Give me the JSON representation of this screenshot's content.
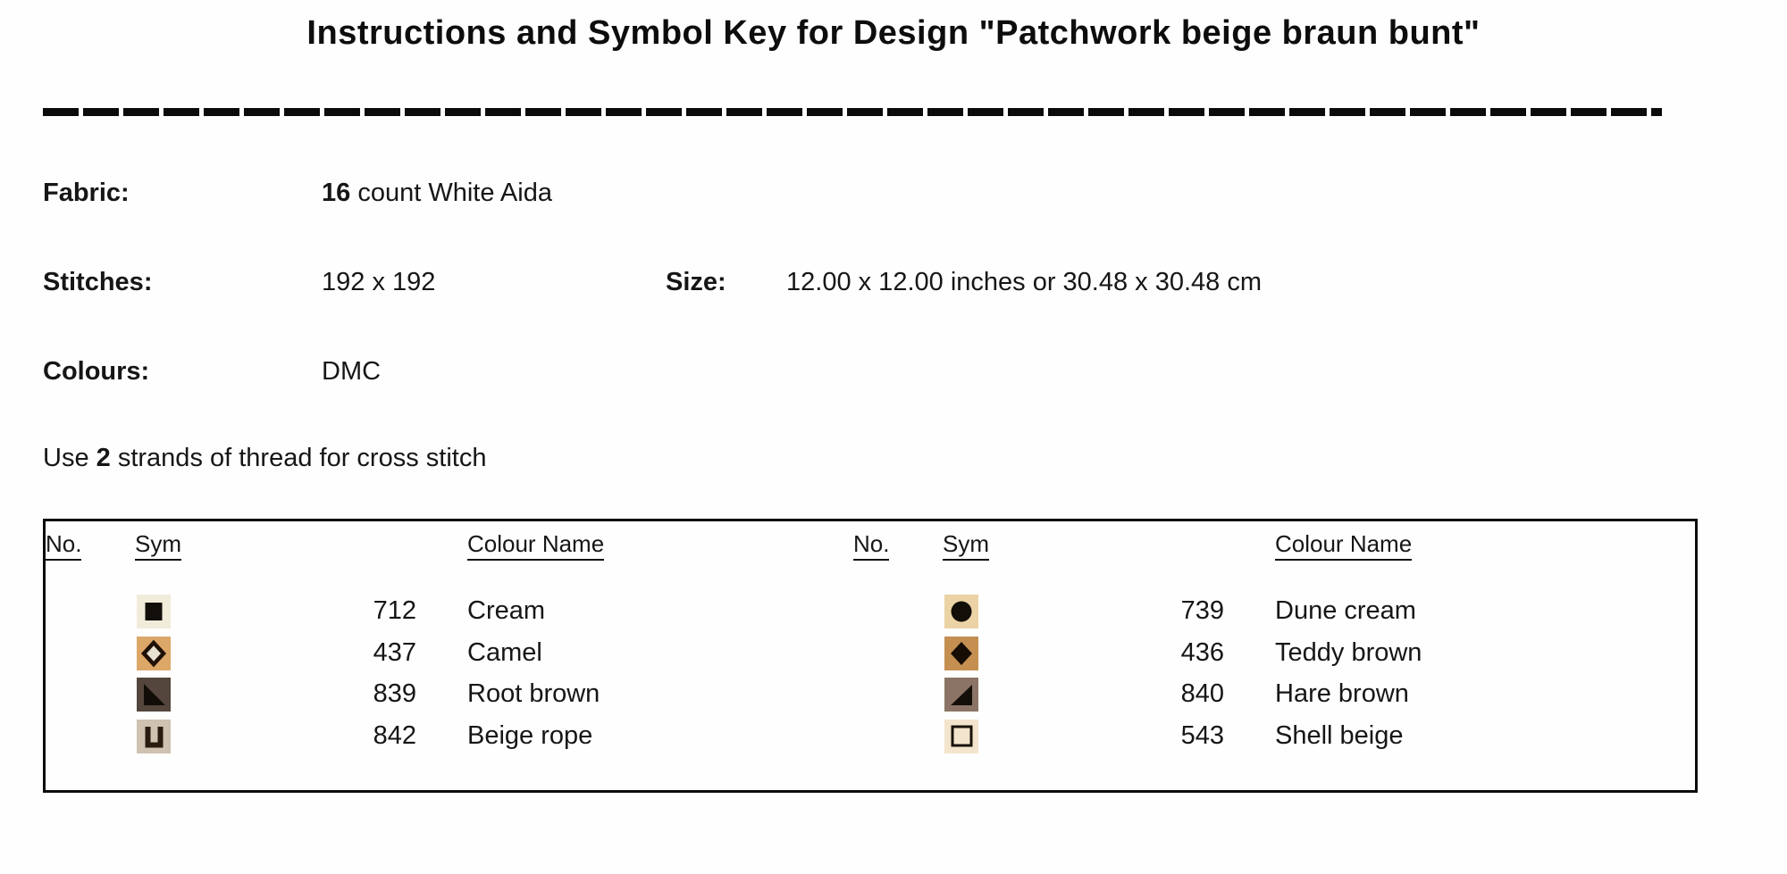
{
  "title": "Instructions and Symbol Key for Design \"Patchwork beige braun bunt\"",
  "info": {
    "fabric_label": "Fabric:",
    "fabric_count": "16",
    "fabric_rest": " count White Aida",
    "stitches_label": "Stitches:",
    "stitches_value": "192 x 192",
    "size_label": "Size:",
    "size_value": "12.00 x 12.00 inches or 30.48 x 30.48 cm",
    "colours_label": "Colours:",
    "colours_value": "DMC",
    "strands_prefix": "Use ",
    "strands_count": "2",
    "strands_suffix": " strands of thread for cross stitch"
  },
  "key_table": {
    "headers": {
      "sym": "Sym",
      "no": "No.",
      "colour_name": "Colour Name"
    },
    "left_rows": [
      {
        "no": "712",
        "name": "Cream",
        "symbol": "filled-square-icon",
        "bg": "#f1ecda",
        "fg": "#120e09"
      },
      {
        "no": "437",
        "name": "Camel",
        "symbol": "hollow-diamond-icon",
        "bg": "#dda768",
        "fg": "#201106",
        "center": "#e9e2d3"
      },
      {
        "no": "839",
        "name": "Root brown",
        "symbol": "triangle-lower-left-icon",
        "bg": "#54463d",
        "fg": "#120d09"
      },
      {
        "no": "842",
        "name": "Beige rope",
        "symbol": "letter-u-icon",
        "bg": "#cfc2b1",
        "fg": "#2a1b10"
      }
    ],
    "right_rows": [
      {
        "no": "739",
        "name": "Dune cream",
        "symbol": "filled-circle-icon",
        "bg": "#ecd3a5",
        "fg": "#120e08"
      },
      {
        "no": "436",
        "name": "Teddy brown",
        "symbol": "filled-diamond-icon",
        "bg": "#c48f51",
        "fg": "#160d05"
      },
      {
        "no": "840",
        "name": "Hare brown",
        "symbol": "triangle-lower-right-icon",
        "bg": "#8b7466",
        "fg": "#140e09"
      },
      {
        "no": "543",
        "name": "Shell beige",
        "symbol": "hollow-square-icon",
        "bg": "#f3e5cd",
        "fg": "#181208"
      }
    ]
  }
}
